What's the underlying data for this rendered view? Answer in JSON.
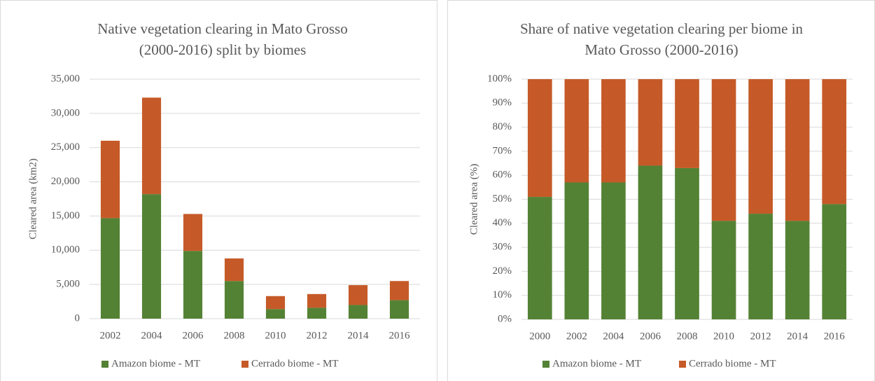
{
  "chart_data": [
    {
      "type": "stacked_bar",
      "title": [
        "Native vegetation clearing in Mato Grosso",
        "(2000-2016) split by biomes"
      ],
      "y_label": "Cleared area (km2)",
      "categories": [
        "2002",
        "2004",
        "2006",
        "2008",
        "2010",
        "2012",
        "2014",
        "2016"
      ],
      "series": [
        {
          "name": "Amazon biome - MT",
          "color": "#548235",
          "values": [
            14700,
            18200,
            9900,
            5500,
            1400,
            1600,
            2000,
            2700
          ]
        },
        {
          "name": "Cerrado biome - MT",
          "color": "#c55a28",
          "values": [
            11300,
            14100,
            5400,
            3300,
            1900,
            2000,
            2900,
            2800
          ]
        }
      ],
      "ylim": [
        0,
        35000
      ],
      "yticks": [
        0,
        {
          "value": 5000,
          "label": "5,000"
        },
        {
          "value": 10000,
          "label": "10,000"
        },
        {
          "value": 15000,
          "label": "15,000"
        },
        {
          "value": 20000,
          "label": "20,000"
        },
        {
          "value": 25000,
          "label": "25,000"
        },
        {
          "value": 30000,
          "label": "30,000"
        },
        {
          "value": 35000,
          "label": "35,000"
        }
      ],
      "grid": true,
      "legend": "bottom"
    },
    {
      "type": "stacked_bar",
      "title": [
        "Share of native vegetation clearing per biome in",
        "Mato Grosso (2000-2016)"
      ],
      "y_label": "Cleared area (%)",
      "categories": [
        "2000",
        "2002",
        "2004",
        "2006",
        "2008",
        "2010",
        "2012",
        "2014",
        "2016"
      ],
      "series": [
        {
          "name": "Amazon biome - MT",
          "color": "#548235",
          "values": [
            51,
            57,
            57,
            64,
            63,
            41,
            44,
            41,
            48
          ]
        },
        {
          "name": "Cerrado biome - MT",
          "color": "#c55a28",
          "values": [
            49,
            43,
            43,
            36,
            37,
            59,
            56,
            59,
            52
          ]
        }
      ],
      "ylim": [
        0,
        100
      ],
      "yticks": [
        {
          "value": 0,
          "label": "0%"
        },
        {
          "value": 10,
          "label": "10%"
        },
        {
          "value": 20,
          "label": "20%"
        },
        {
          "value": 30,
          "label": "30%"
        },
        {
          "value": 40,
          "label": "40%"
        },
        {
          "value": 50,
          "label": "50%"
        },
        {
          "value": 60,
          "label": "60%"
        },
        {
          "value": 70,
          "label": "70%"
        },
        {
          "value": 80,
          "label": "80%"
        },
        {
          "value": 90,
          "label": "90%"
        },
        {
          "value": 100,
          "label": "100%"
        }
      ],
      "grid": true,
      "legend": "bottom"
    }
  ]
}
